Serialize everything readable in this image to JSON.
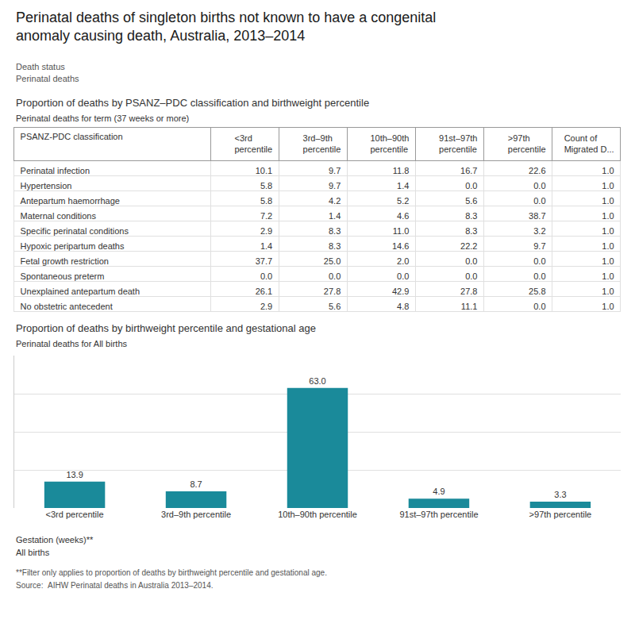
{
  "title": "Perinatal deaths of singleton births not known to have a congenital\nanomaly causing death, Australia, 2013–2014",
  "annotations": [
    "Death status",
    "Perinatal deaths"
  ],
  "chart_data": [
    {
      "type": "table",
      "title": "Proportion of deaths by PSANZ–PDC classification and birthweight percentile",
      "subtitle": "Perinatal deaths for term (37 weeks or more)",
      "columns": [
        "PSANZ-PDC classification",
        "<3rd\npercentile",
        "3rd–9th\npercentile",
        "10th–90th\npercentile",
        "91st–97th\npercentile",
        ">97th\npercentile",
        "Count of\nMigrated D..."
      ],
      "rows": [
        [
          "Perinatal infection",
          "10.1",
          "9.7",
          "11.8",
          "16.7",
          "22.6",
          "1.0"
        ],
        [
          "Hypertension",
          "5.8",
          "9.7",
          "1.4",
          "0.0",
          "0.0",
          "1.0"
        ],
        [
          "Antepartum haemorrhage",
          "5.8",
          "4.2",
          "5.2",
          "5.6",
          "0.0",
          "1.0"
        ],
        [
          "Maternal conditions",
          "7.2",
          "1.4",
          "4.6",
          "8.3",
          "38.7",
          "1.0"
        ],
        [
          "Specific perinatal conditions",
          "2.9",
          "8.3",
          "11.0",
          "8.3",
          "3.2",
          "1.0"
        ],
        [
          "Hypoxic peripartum deaths",
          "1.4",
          "8.3",
          "14.6",
          "22.2",
          "9.7",
          "1.0"
        ],
        [
          "Fetal growth restriction",
          "37.7",
          "25.0",
          "2.0",
          "0.0",
          "0.0",
          "1.0"
        ],
        [
          "Spontaneous preterm",
          "0.0",
          "0.0",
          "0.0",
          "0.0",
          "0.0",
          "1.0"
        ],
        [
          "Unexplained antepartum death",
          "26.1",
          "27.8",
          "42.9",
          "27.8",
          "25.8",
          "1.0"
        ],
        [
          "No obstetric antecedent",
          "2.9",
          "5.6",
          "4.8",
          "11.1",
          "0.0",
          "1.0"
        ]
      ]
    },
    {
      "type": "bar",
      "title": "Proportion of deaths by birthweight percentile and gestational age",
      "subtitle": "Perinatal deaths for All births",
      "categories": [
        "<3rd percentile",
        "3rd–9th percentile",
        "10th–90th percentile",
        "91st–97th percentile",
        ">97th percentile"
      ],
      "values": [
        13.9,
        8.7,
        63.0,
        4.9,
        3.3
      ],
      "value_labels": [
        "13.9",
        "8.7",
        "63.0",
        "4.9",
        "3.3"
      ],
      "data_labels": true,
      "color": "#1a8a9a",
      "ylim": [
        0,
        80
      ],
      "yticks": [
        20,
        40,
        60
      ],
      "grid": true,
      "tick_labels": "x",
      "annotations": [
        "Gestation (weeks)**",
        "All births",
        "**Filter only applies to proportion of deaths by birthweight percentile and gestational age.",
        "Source:  AIHW Perinatal deaths in Australia 2013–2014."
      ]
    }
  ]
}
